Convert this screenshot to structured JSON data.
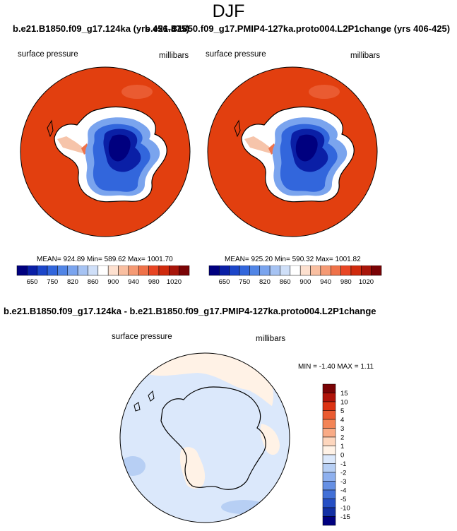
{
  "figure": {
    "title": "DJF"
  },
  "panels": [
    {
      "case_title": "b.e21.B1850.f09_g17.124ka (yrs 456-475)",
      "variable": "surface pressure",
      "units": "millibars",
      "stats": "MEAN= 924.89  Min= 589.62  Max= 1001.70"
    },
    {
      "case_title": "b.e21.B1850.f09_g17.PMIP4-127ka.proto004.L2P1change (yrs 406-425)",
      "variable": "surface pressure",
      "units": "millibars",
      "stats": "MEAN= 925.20  Min= 590.32  Max= 1001.82"
    },
    {
      "case_title": "b.e21.B1850.f09_g17.124ka - b.e21.B1850.f09_g17.PMIP4-127ka.proto004.L2P1change",
      "variable": "surface pressure",
      "units": "millibars",
      "stats": "MIN = -1.40 MAX =  1.11"
    }
  ],
  "colorbar_abs": {
    "colors": [
      "#00007f",
      "#0a1fa6",
      "#1c46c9",
      "#3266dc",
      "#5185e6",
      "#7aa4ee",
      "#a6c3f3",
      "#cfdff8",
      "#ffffff",
      "#fde0cf",
      "#f9bfa1",
      "#f59a74",
      "#ef7249",
      "#e84523",
      "#cf2a0d",
      "#a8150a",
      "#7a0305"
    ],
    "labels": [
      "650",
      "750",
      "820",
      "860",
      "900",
      "940",
      "980",
      "1020"
    ]
  },
  "colorbar_diff": {
    "colors": [
      "#7a0305",
      "#b01309",
      "#dc3212",
      "#ea5b31",
      "#f38456",
      "#f9ab86",
      "#fdd6bd",
      "#fff2e6",
      "#dbe8fb",
      "#b7cff4",
      "#8eb0ee",
      "#6690e4",
      "#4270d7",
      "#264fc4",
      "#1330a4",
      "#00007f"
    ],
    "labels": [
      "15",
      "10",
      "5",
      "4",
      "3",
      "2",
      "1",
      "0",
      "-1",
      "-2",
      "-3",
      "-4",
      "-5",
      "-10",
      "-15"
    ]
  }
}
